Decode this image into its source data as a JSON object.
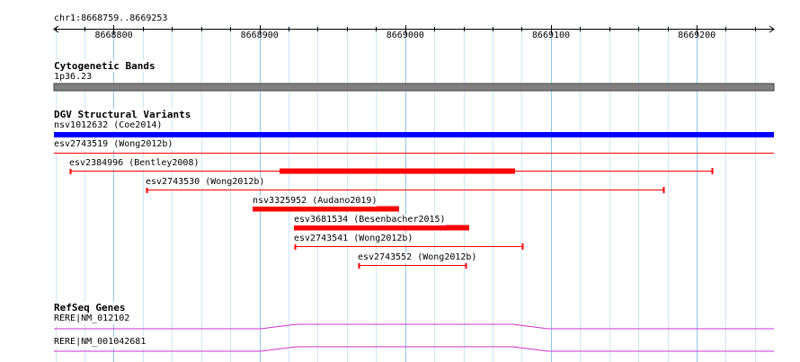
{
  "region": {
    "label": "chr1:8668759..8669253",
    "start": 8668759,
    "end": 8669253
  },
  "ruler": {
    "ticks": [
      {
        "pos": 8668800,
        "label": "8668800"
      },
      {
        "pos": 8668900,
        "label": "8668900"
      },
      {
        "pos": 8669000,
        "label": "8669000"
      },
      {
        "pos": 8669100,
        "label": "8669100"
      },
      {
        "pos": 8669200,
        "label": "8669200"
      }
    ]
  },
  "tracks": {
    "cytoband": {
      "title": "Cytogenetic Bands",
      "band_label": "1p36.23",
      "color": "#808080"
    },
    "dgv": {
      "title": "DGV Structural Variants",
      "variants": [
        {
          "label": "nsv1012632 (Coe2014)",
          "color": "#0000ff",
          "kind": "thick"
        },
        {
          "label": "esv2743519 (Wong2012b)",
          "color": "#ff0000",
          "kind": "thin"
        },
        {
          "label": "esv2384996 (Bentley2008)",
          "color": "#ff0000",
          "kind": "composite"
        },
        {
          "label": "esv2743530 (Wong2012b)",
          "color": "#ff0000",
          "kind": "thin"
        },
        {
          "label": "nsv3325952 (Audano2019)",
          "color": "#ff0000",
          "kind": "thick"
        },
        {
          "label": "esv3681534 (Besenbacher2015)",
          "color": "#ff0000",
          "kind": "thick"
        },
        {
          "label": "esv2743541 (Wong2012b)",
          "color": "#ff0000",
          "kind": "thin"
        },
        {
          "label": "esv2743552 (Wong2012b)",
          "color": "#ff0000",
          "kind": "thin"
        }
      ]
    },
    "refseq": {
      "title": "RefSeq Genes",
      "genes": [
        {
          "label": "RERE|NM_012102",
          "color": "#cc33cc"
        },
        {
          "label": "RERE|NM_001042681",
          "color": "#cc33cc"
        }
      ]
    }
  }
}
